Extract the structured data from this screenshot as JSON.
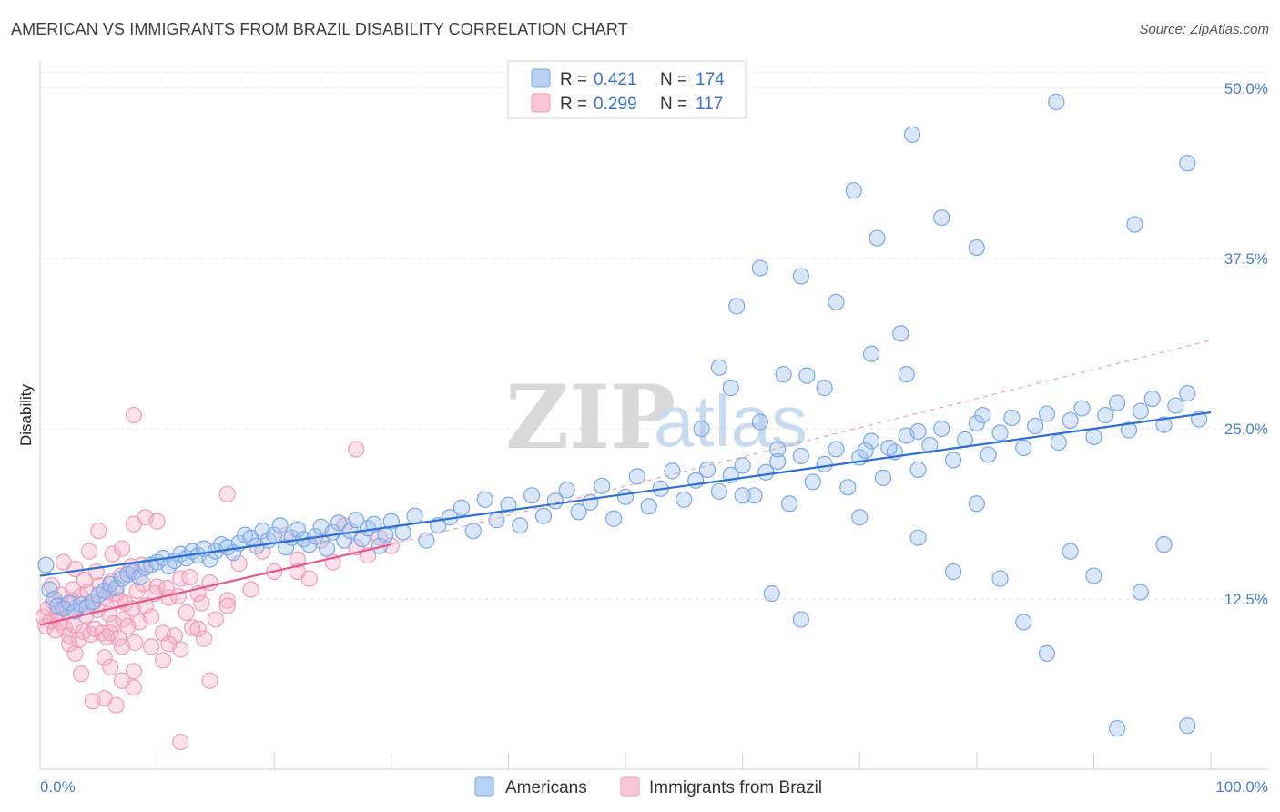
{
  "chart_data": {
    "type": "scatter",
    "title": "AMERICAN VS IMMIGRANTS FROM BRAZIL DISABILITY CORRELATION CHART",
    "source": "Source: ZipAtlas.com",
    "ylabel": "Disability",
    "xlim": [
      0,
      100
    ],
    "ylim": [
      0,
      50
    ],
    "xtick_labels": [
      "0.0%",
      "100.0%"
    ],
    "ytick_values": [
      12.5,
      25.0,
      37.5,
      50.0
    ],
    "ytick_labels": [
      "12.5%",
      "25.0%",
      "37.5%",
      "50.0%"
    ],
    "watermark": [
      "ZIP",
      "atlas"
    ],
    "legend": {
      "r_label": "R =",
      "n_label": "N =",
      "entries": [
        {
          "name": "Americans",
          "r": "0.421",
          "n": "174"
        },
        {
          "name": "Immigrants from Brazil",
          "r": "0.299",
          "n": "117"
        }
      ]
    },
    "series": [
      {
        "name": "Americans",
        "color": "#7aa7e8",
        "line_color": "#2a6fd6",
        "trend": {
          "x": [
            0,
            100
          ],
          "y": [
            14.2,
            26.2
          ]
        },
        "points": [
          [
            0.5,
            15.0
          ],
          [
            0.8,
            13.2
          ],
          [
            1.2,
            12.5
          ],
          [
            1.5,
            12.0
          ],
          [
            2.0,
            11.8
          ],
          [
            2.5,
            12.2
          ],
          [
            3.0,
            11.6
          ],
          [
            3.5,
            12.1
          ],
          [
            4.0,
            11.9
          ],
          [
            4.5,
            12.3
          ],
          [
            5.0,
            12.8
          ],
          [
            5.5,
            13.1
          ],
          [
            6.0,
            13.6
          ],
          [
            6.5,
            13.3
          ],
          [
            7.0,
            14.0
          ],
          [
            7.5,
            14.3
          ],
          [
            8.0,
            14.5
          ],
          [
            8.5,
            14.1
          ],
          [
            9.0,
            14.8
          ],
          [
            9.5,
            15.0
          ],
          [
            10.0,
            15.2
          ],
          [
            10.5,
            15.5
          ],
          [
            11.0,
            14.9
          ],
          [
            11.5,
            15.3
          ],
          [
            12.0,
            15.8
          ],
          [
            12.5,
            15.5
          ],
          [
            13.0,
            16.0
          ],
          [
            13.5,
            15.7
          ],
          [
            14.0,
            16.2
          ],
          [
            14.5,
            15.4
          ],
          [
            15.0,
            16.0
          ],
          [
            15.5,
            16.5
          ],
          [
            16.0,
            16.3
          ],
          [
            16.5,
            15.9
          ],
          [
            17.0,
            16.6
          ],
          [
            17.5,
            17.2
          ],
          [
            18.0,
            17.0
          ],
          [
            18.5,
            16.4
          ],
          [
            19.0,
            17.5
          ],
          [
            19.5,
            16.8
          ],
          [
            20.0,
            17.2
          ],
          [
            20.5,
            17.9
          ],
          [
            21.0,
            16.3
          ],
          [
            21.5,
            17.0
          ],
          [
            22.0,
            17.6
          ],
          [
            22.5,
            16.9
          ],
          [
            23.0,
            16.5
          ],
          [
            23.5,
            17.1
          ],
          [
            24.0,
            17.8
          ],
          [
            24.5,
            16.2
          ],
          [
            25.0,
            17.4
          ],
          [
            25.5,
            18.1
          ],
          [
            26.0,
            16.8
          ],
          [
            26.5,
            17.5
          ],
          [
            27.0,
            18.3
          ],
          [
            27.5,
            16.9
          ],
          [
            28.0,
            17.7
          ],
          [
            28.5,
            18.0
          ],
          [
            29.0,
            16.4
          ],
          [
            29.5,
            17.2
          ],
          [
            30.0,
            18.2
          ],
          [
            31.0,
            17.4
          ],
          [
            32.0,
            18.6
          ],
          [
            33.0,
            16.8
          ],
          [
            34.0,
            17.9
          ],
          [
            35.0,
            18.5
          ],
          [
            36.0,
            19.2
          ],
          [
            37.0,
            17.5
          ],
          [
            38.0,
            19.8
          ],
          [
            39.0,
            18.3
          ],
          [
            40.0,
            19.4
          ],
          [
            41.0,
            17.9
          ],
          [
            42.0,
            20.1
          ],
          [
            43.0,
            18.6
          ],
          [
            44.0,
            19.7
          ],
          [
            45.0,
            20.5
          ],
          [
            46.0,
            18.9
          ],
          [
            47.0,
            19.6
          ],
          [
            48.0,
            20.8
          ],
          [
            49.0,
            18.4
          ],
          [
            50.0,
            20.0
          ],
          [
            51.0,
            21.5
          ],
          [
            52.0,
            19.3
          ],
          [
            53.0,
            20.6
          ],
          [
            54.0,
            21.9
          ],
          [
            55.0,
            19.8
          ],
          [
            56.0,
            21.2
          ],
          [
            57.0,
            22.0
          ],
          [
            58.0,
            20.4
          ],
          [
            59.0,
            21.6
          ],
          [
            60.0,
            22.3
          ],
          [
            61.0,
            20.1
          ],
          [
            62.0,
            21.8
          ],
          [
            63.0,
            22.6
          ],
          [
            64.0,
            19.5
          ],
          [
            65.0,
            23.0
          ],
          [
            66.0,
            21.1
          ],
          [
            67.0,
            22.4
          ],
          [
            68.0,
            23.5
          ],
          [
            69.0,
            20.7
          ],
          [
            70.0,
            22.9
          ],
          [
            71.0,
            24.1
          ],
          [
            72.0,
            21.4
          ],
          [
            73.0,
            23.3
          ],
          [
            74.0,
            24.5
          ],
          [
            75.0,
            22.0
          ],
          [
            76.0,
            23.8
          ],
          [
            77.0,
            25.0
          ],
          [
            78.0,
            22.7
          ],
          [
            79.0,
            24.2
          ],
          [
            80.0,
            25.4
          ],
          [
            81.0,
            23.1
          ],
          [
            82.0,
            24.7
          ],
          [
            83.0,
            25.8
          ],
          [
            84.0,
            23.6
          ],
          [
            85.0,
            25.2
          ],
          [
            86.0,
            26.1
          ],
          [
            87.0,
            24.0
          ],
          [
            88.0,
            25.6
          ],
          [
            89.0,
            26.5
          ],
          [
            90.0,
            24.4
          ],
          [
            91.0,
            26.0
          ],
          [
            92.0,
            26.9
          ],
          [
            93.0,
            24.9
          ],
          [
            94.0,
            26.3
          ],
          [
            95.0,
            27.2
          ],
          [
            96.0,
            25.3
          ],
          [
            97.0,
            26.7
          ],
          [
            98.0,
            27.6
          ],
          [
            99.0,
            25.7
          ],
          [
            60.0,
            20.1
          ],
          [
            62.5,
            12.9
          ],
          [
            65.0,
            11.0
          ],
          [
            70.0,
            18.5
          ],
          [
            75.0,
            17.0
          ],
          [
            78.0,
            14.5
          ],
          [
            80.0,
            19.5
          ],
          [
            82.0,
            14.0
          ],
          [
            84.0,
            10.8
          ],
          [
            86.0,
            8.5
          ],
          [
            88.0,
            16.0
          ],
          [
            90.0,
            14.2
          ],
          [
            92.0,
            3.0
          ],
          [
            94.0,
            13.0
          ],
          [
            96.0,
            16.5
          ],
          [
            98.0,
            3.2
          ],
          [
            86.8,
            49.0
          ],
          [
            74.5,
            46.6
          ],
          [
            98.0,
            44.5
          ],
          [
            69.5,
            42.5
          ],
          [
            77.0,
            40.5
          ],
          [
            93.5,
            40.0
          ],
          [
            71.5,
            39.0
          ],
          [
            80.0,
            38.3
          ],
          [
            61.5,
            36.8
          ],
          [
            65.0,
            36.2
          ],
          [
            68.0,
            34.3
          ],
          [
            59.5,
            34.0
          ],
          [
            73.5,
            32.0
          ],
          [
            71.0,
            30.5
          ],
          [
            58.0,
            29.5
          ],
          [
            63.5,
            29.0
          ],
          [
            65.5,
            28.9
          ],
          [
            67.0,
            28.0
          ],
          [
            74.0,
            29.0
          ],
          [
            59.0,
            28.0
          ],
          [
            56.5,
            25.0
          ],
          [
            61.5,
            25.5
          ],
          [
            80.5,
            26.0
          ],
          [
            75.0,
            24.8
          ],
          [
            63.0,
            23.5
          ],
          [
            70.5,
            23.4
          ],
          [
            72.5,
            23.6
          ]
        ]
      },
      {
        "name": "Immigrants from Brazil",
        "color": "#f29bb6",
        "line_color": "#e8578a",
        "trend": {
          "x": [
            0,
            30
          ],
          "y": [
            10.6,
            16.5
          ],
          "dashed_to": [
            100,
            31.5
          ]
        },
        "points": [
          [
            0.3,
            11.2
          ],
          [
            0.5,
            10.5
          ],
          [
            0.7,
            11.8
          ],
          [
            0.9,
            10.9
          ],
          [
            1.1,
            12.3
          ],
          [
            1.3,
            10.2
          ],
          [
            1.5,
            11.5
          ],
          [
            1.7,
            10.8
          ],
          [
            1.9,
            12.0
          ],
          [
            2.1,
            10.4
          ],
          [
            2.3,
            11.6
          ],
          [
            2.5,
            9.8
          ],
          [
            2.7,
            12.4
          ],
          [
            2.9,
            10.6
          ],
          [
            3.1,
            11.9
          ],
          [
            3.3,
            9.5
          ],
          [
            3.5,
            12.7
          ],
          [
            3.7,
            10.1
          ],
          [
            3.9,
            11.3
          ],
          [
            4.1,
            13.0
          ],
          [
            4.3,
            9.9
          ],
          [
            4.5,
            12.1
          ],
          [
            4.7,
            10.3
          ],
          [
            4.9,
            11.7
          ],
          [
            5.1,
            13.5
          ],
          [
            5.3,
            10.0
          ],
          [
            5.5,
            12.6
          ],
          [
            5.7,
            9.7
          ],
          [
            5.9,
            11.4
          ],
          [
            6.1,
            13.8
          ],
          [
            6.3,
            10.7
          ],
          [
            6.5,
            12.9
          ],
          [
            6.7,
            9.6
          ],
          [
            6.9,
            14.2
          ],
          [
            7.1,
            11.0
          ],
          [
            7.3,
            12.2
          ],
          [
            7.5,
            10.5
          ],
          [
            7.7,
            14.6
          ],
          [
            7.9,
            11.8
          ],
          [
            8.1,
            9.3
          ],
          [
            8.3,
            13.1
          ],
          [
            8.5,
            10.8
          ],
          [
            8.7,
            15.0
          ],
          [
            9.0,
            12.0
          ],
          [
            9.5,
            11.2
          ],
          [
            10.0,
            13.4
          ],
          [
            10.5,
            10.0
          ],
          [
            11.0,
            12.6
          ],
          [
            11.5,
            9.8
          ],
          [
            12.0,
            14.0
          ],
          [
            12.5,
            11.5
          ],
          [
            13.0,
            10.4
          ],
          [
            13.5,
            12.9
          ],
          [
            14.0,
            9.6
          ],
          [
            14.5,
            13.7
          ],
          [
            15.0,
            11.0
          ],
          [
            16.0,
            12.4
          ],
          [
            17.0,
            15.1
          ],
          [
            18.0,
            13.2
          ],
          [
            19.0,
            16.0
          ],
          [
            20.0,
            14.5
          ],
          [
            21.0,
            17.2
          ],
          [
            22.0,
            15.4
          ],
          [
            23.0,
            14.0
          ],
          [
            24.0,
            16.8
          ],
          [
            25.0,
            15.2
          ],
          [
            26.0,
            17.9
          ],
          [
            27.0,
            16.3
          ],
          [
            28.0,
            15.7
          ],
          [
            29.0,
            17.0
          ],
          [
            30.0,
            16.4
          ],
          [
            2.0,
            15.2
          ],
          [
            3.0,
            14.7
          ],
          [
            4.2,
            16.0
          ],
          [
            5.0,
            17.5
          ],
          [
            6.2,
            15.8
          ],
          [
            7.0,
            16.2
          ],
          [
            8.0,
            18.0
          ],
          [
            9.0,
            18.5
          ],
          [
            10.0,
            18.2
          ],
          [
            5.5,
            8.2
          ],
          [
            6.0,
            7.5
          ],
          [
            7.0,
            6.5
          ],
          [
            8.0,
            7.2
          ],
          [
            3.5,
            7.0
          ],
          [
            4.5,
            5.0
          ],
          [
            5.5,
            5.2
          ],
          [
            6.5,
            4.7
          ],
          [
            8.0,
            6.0
          ],
          [
            11.0,
            9.2
          ],
          [
            12.0,
            8.8
          ],
          [
            13.5,
            10.3
          ],
          [
            14.5,
            6.5
          ],
          [
            16.0,
            12.0
          ],
          [
            6.0,
            10.0
          ],
          [
            7.0,
            9.0
          ],
          [
            2.5,
            9.2
          ],
          [
            3.0,
            8.5
          ],
          [
            9.5,
            9.0
          ],
          [
            10.5,
            8.0
          ],
          [
            1.0,
            13.5
          ],
          [
            1.8,
            12.8
          ],
          [
            2.8,
            13.2
          ],
          [
            3.8,
            13.9
          ],
          [
            4.8,
            14.5
          ],
          [
            5.8,
            13.0
          ],
          [
            6.8,
            12.4
          ],
          [
            7.8,
            14.9
          ],
          [
            8.8,
            13.6
          ],
          [
            9.8,
            12.9
          ],
          [
            10.8,
            13.3
          ],
          [
            11.8,
            12.7
          ],
          [
            12.8,
            14.1
          ],
          [
            13.8,
            12.2
          ],
          [
            27.0,
            23.5
          ],
          [
            8.0,
            26.0
          ],
          [
            16.0,
            20.2
          ],
          [
            12.0,
            2.0
          ],
          [
            22.0,
            14.5
          ]
        ]
      }
    ]
  }
}
